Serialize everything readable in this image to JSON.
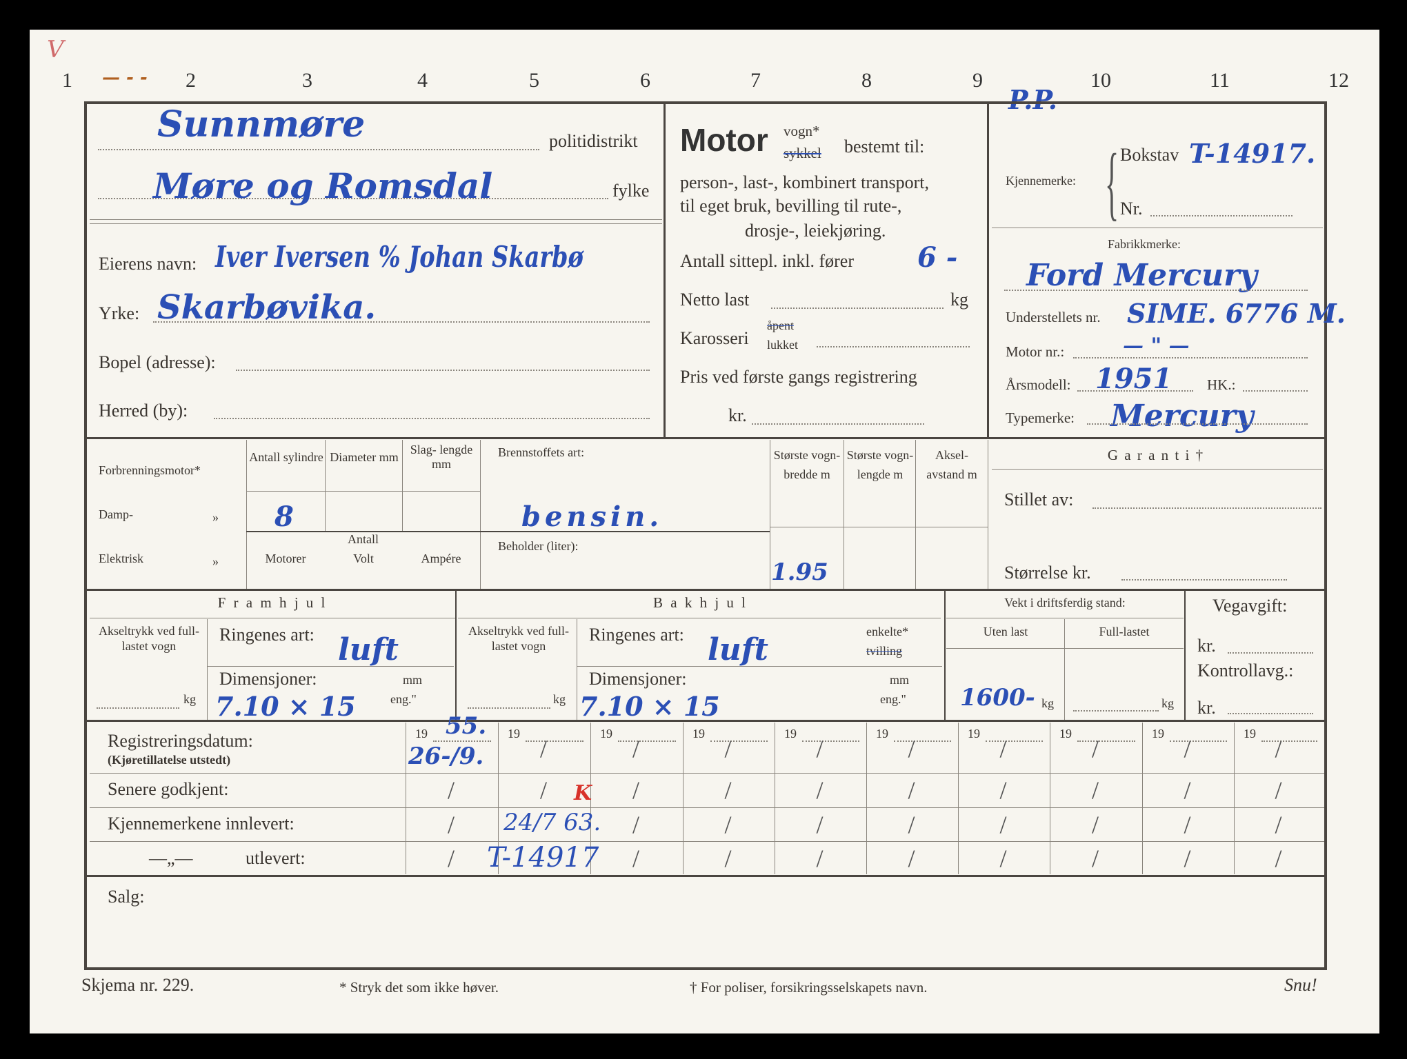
{
  "column_numbers": [
    "1",
    "2",
    "3",
    "4",
    "5",
    "6",
    "7",
    "8",
    "9",
    "10",
    "11",
    "12"
  ],
  "margin_marks": {
    "top_left": "V",
    "dash": "— - -",
    "pp": "P.P."
  },
  "district": {
    "police_value": "Sunnmøre",
    "police_label": "politidistrikt",
    "county_value": "Møre og Romsdal",
    "county_label": "fylke"
  },
  "owner": {
    "name_label": "Eierens navn:",
    "name_value": "Iver Iversen % Johan Skarbø",
    "occupation_label": "Yrke:",
    "occupation_value": "Skarbøvika.",
    "address_label": "Bopel (adresse):",
    "municipality_label": "Herred (by):"
  },
  "motor": {
    "title": "Motor",
    "vogn": "vogn*",
    "sykkel": "sykkel",
    "bestemt": "bestemt til:",
    "line1": "person-, last-, kombinert transport,",
    "line2": "til eget bruk, bevilling til rute-,",
    "line3": "drosje-, leiekjøring.",
    "seats_label": "Antall sittepl. inkl. fører",
    "seats_value": "6 -",
    "net_label": "Netto last",
    "net_unit": "kg",
    "body_label": "Karosseri",
    "body_open": "åpent",
    "body_closed": "lukket",
    "price_label": "Pris ved første gangs registrering",
    "price_unit": "kr."
  },
  "plate": {
    "label": "Kjennemerke:",
    "letter_label": "Bokstav",
    "letter_value": "T-14917.",
    "nr_label": "Nr."
  },
  "vehicle": {
    "make_label": "Fabrikkmerke:",
    "make_value": "Ford Mercury",
    "chassis_label": "Understellets nr.",
    "chassis_value": "SIME. 6776 M.",
    "engine_label": "Motor nr.:",
    "engine_value": "— \" —",
    "year_label": "Årsmodell:",
    "year_value": "1951",
    "hp_label": "HK.:",
    "type_label": "Typemerke:",
    "type_value": "Mercury"
  },
  "engine": {
    "combustion": "Forbrenningsmotor*",
    "steam": "Damp-",
    "electric": "Elektrisk",
    "ditto": "»",
    "cyl_label": "Antall sylindre",
    "cyl_value": "8",
    "diam_label": "Diameter mm",
    "stroke_label": "Slag- lengde mm",
    "antall": "Antall",
    "motors": "Motorer",
    "volt": "Volt",
    "ampere": "Ampére",
    "fuel_label": "Brennstoffets art:",
    "fuel_value": "bensin.",
    "tank_label": "Beholder (liter):",
    "width_label": "Største vogn- bredde m",
    "width_value": "1.95",
    "length_label": "Største vogn- lengde m",
    "axle_label": "Aksel- avstand m"
  },
  "guarantee": {
    "title": "G a r a n t i †",
    "by_label": "Stillet av:",
    "size_label": "Størrelse kr."
  },
  "front": {
    "title": "F r a m h j u l",
    "axle_load": "Akseltrykk ved full-lastet vogn",
    "kg": "kg",
    "tyre_label": "Ringenes art:",
    "tyre_value": "luft",
    "dim_label": "Dimensjoner:",
    "dim_value": "7.10 × 15",
    "mm": "mm",
    "eng": "eng.\""
  },
  "rear": {
    "title": "B a k h j u l",
    "axle_load": "Akseltrykk ved full-lastet vogn",
    "kg": "kg",
    "tyre_label": "Ringenes art:",
    "tyre_value": "luft",
    "single": "enkelte*",
    "twin": "tvilling",
    "dim_label": "Dimensjoner:",
    "dim_value": "7.10 × 15",
    "mm": "mm",
    "eng": "eng.\""
  },
  "weight": {
    "title": "Vekt i driftsferdig stand:",
    "empty_label": "Uten last",
    "empty_value": "1600-",
    "full_label": "Full-lastet",
    "kg": "kg"
  },
  "tax": {
    "title": "Vegavgift:",
    "kr": "kr.",
    "control": "Kontrollavg.:"
  },
  "registration": {
    "rows": [
      "Registreringsdatum:",
      "Senere godkjent:",
      "Kjennemerkene innlevert:",
      "utlevert:"
    ],
    "sub": "(Kjøretillatelse utstedt)",
    "ditto": "—„—",
    "year_prefix": "19",
    "slash": "/",
    "entries": {
      "year1": "55.",
      "date1": "26-/9.",
      "returned": "24/7 63.",
      "returned_mark": "K",
      "issued": "T-14917"
    }
  },
  "sale_label": "Salg:",
  "footer": {
    "form": "Skjema nr. 229.",
    "note1": "* Stryk det som ikke høver.",
    "note2": "† For poliser, forsikringsselskapets navn.",
    "turn": "Snu!"
  }
}
